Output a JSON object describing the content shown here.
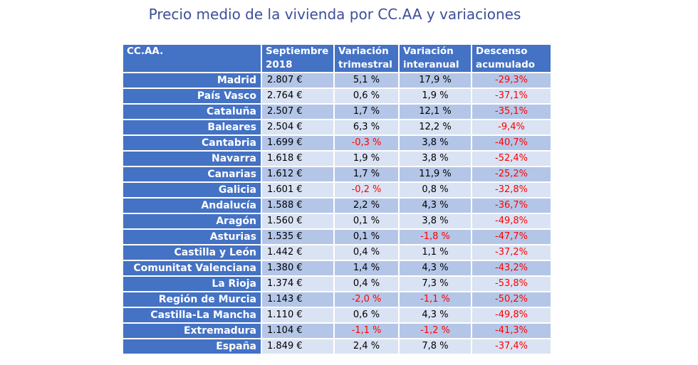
{
  "title": "Precio medio de la vivienda por CC.AA y variaciones",
  "chart_data": {
    "type": "table",
    "title": "Precio medio de la vivienda por CC.AA y variaciones",
    "columns": [
      "CC.AA.",
      "Septiembre 2018",
      "Variación trimestral",
      "Variación interanual",
      "Descenso acumulado"
    ],
    "header_lines": [
      [
        "CC.AA."
      ],
      [
        "Septiembre",
        "2018"
      ],
      [
        "Variación",
        "trimestral"
      ],
      [
        "Variación",
        "interanual"
      ],
      [
        "Descenso",
        "acumulado"
      ]
    ],
    "rows": [
      [
        "Madrid",
        "2.807 €",
        "5,1 %",
        "17,9 %",
        "-29,3%"
      ],
      [
        "País Vasco",
        "2.764 €",
        "0,6 %",
        "1,9 %",
        "-37,1%"
      ],
      [
        "Cataluña",
        "2.507 €",
        "1,7 %",
        "12,1 %",
        "-35,1%"
      ],
      [
        "Baleares",
        "2.504 €",
        "6,3 %",
        "12,2 %",
        "-9,4%"
      ],
      [
        "Cantabria",
        "1.699 €",
        "-0,3 %",
        "3,8 %",
        "-40,7%"
      ],
      [
        "Navarra",
        "1.618 €",
        "1,9 %",
        "3,8 %",
        "-52,4%"
      ],
      [
        "Canarias",
        "1.612 €",
        "1,7 %",
        "11,9 %",
        "-25,2%"
      ],
      [
        "Galicia",
        "1.601 €",
        "-0,2 %",
        "0,8 %",
        "-32,8%"
      ],
      [
        "Andalucía",
        "1.588 €",
        "2,2 %",
        "4,3 %",
        "-36,7%"
      ],
      [
        "Aragón",
        "1.560 €",
        "0,1 %",
        "3,8 %",
        "-49,8%"
      ],
      [
        "Asturias",
        "1.535 €",
        "0,1 %",
        "-1,8 %",
        "-47,7%"
      ],
      [
        "Castilla y León",
        "1.442 €",
        "0,4 %",
        "1,1 %",
        "-37,2%"
      ],
      [
        "Comunitat Valenciana",
        "1.380 €",
        "1,4 %",
        "4,3 %",
        "-43,2%"
      ],
      [
        "La Rioja",
        "1.374 €",
        "0,4 %",
        "7,3 %",
        "-53,8%"
      ],
      [
        "Región de Murcia",
        "1.143 €",
        "-2,0 %",
        "-1,1 %",
        "-50,2%"
      ],
      [
        "Castilla-La Mancha",
        "1.110 €",
        "0,6 %",
        "4,3 %",
        "-49,8%"
      ],
      [
        "Extremadura",
        "1.104 €",
        "-1,1 %",
        "-1,2 %",
        "-41,3%"
      ],
      [
        "España",
        "1.849 €",
        "2,4 %",
        "7,8 %",
        "-37,4%"
      ]
    ],
    "colors": {
      "title": "#3c4f9a",
      "header_bg": "#4472c4",
      "header_text": "#ffffff",
      "row_odd_bg": "#b4c6e7",
      "row_even_bg": "#dae3f3",
      "negative_text": "#ff0000",
      "positive_text": "#000000"
    }
  }
}
